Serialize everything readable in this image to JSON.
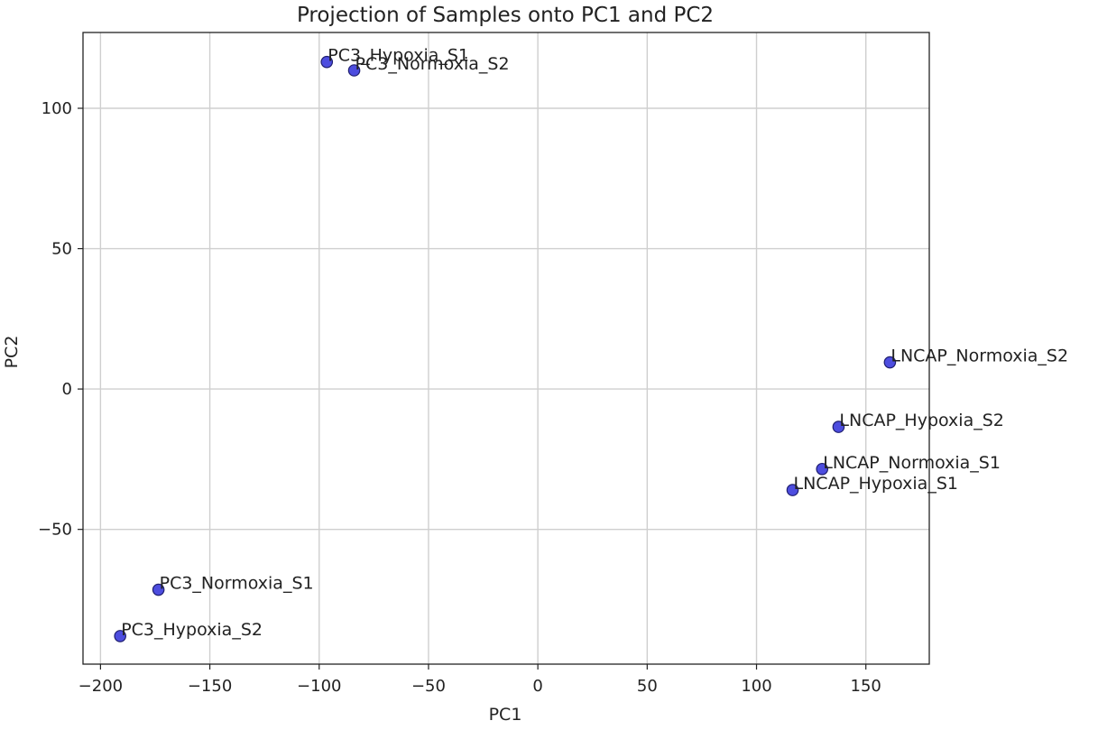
{
  "chart_data": {
    "type": "scatter",
    "title": "Projection of Samples onto PC1 and PC2",
    "xlabel": "PC1",
    "ylabel": "PC2",
    "xlim": [
      -208,
      179
    ],
    "ylim": [
      -98,
      127
    ],
    "xticks": [
      -200,
      -150,
      -100,
      -50,
      0,
      50,
      100,
      150
    ],
    "yticks": [
      -50,
      0,
      50,
      100
    ],
    "grid": true,
    "marker_color": "#3a3adb",
    "marker_edge_color": "#1f1f70",
    "points": [
      {
        "label": "PC3_Hypoxia_S1",
        "x": -96.5,
        "y": 116.5
      },
      {
        "label": "PC3_Normoxia_S2",
        "x": -84,
        "y": 113.5
      },
      {
        "label": "LNCAP_Normoxia_S2",
        "x": 161,
        "y": 9.5
      },
      {
        "label": "LNCAP_Hypoxia_S2",
        "x": 137.5,
        "y": -13.5
      },
      {
        "label": "LNCAP_Normoxia_S1",
        "x": 130,
        "y": -28.5
      },
      {
        "label": "LNCAP_Hypoxia_S1",
        "x": 116.5,
        "y": -36
      },
      {
        "label": "PC3_Normoxia_S1",
        "x": -173.5,
        "y": -71.5
      },
      {
        "label": "PC3_Hypoxia_S2",
        "x": -191,
        "y": -88
      }
    ]
  }
}
